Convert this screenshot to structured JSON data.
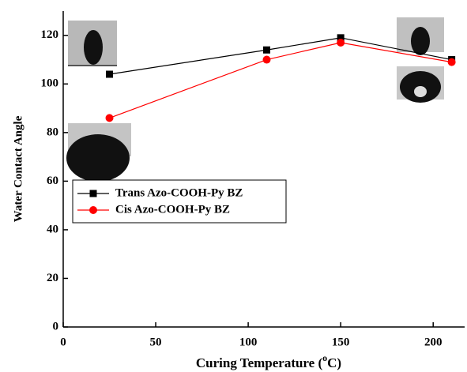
{
  "chart_data": {
    "type": "line",
    "x_label": {
      "text": "Curing Temperature (",
      "superscript": "o",
      "suffix": "C)"
    },
    "y_label": "Water Contact Angle",
    "xlim": [
      0,
      217
    ],
    "xticks": [
      0,
      50,
      100,
      150,
      200
    ],
    "ylim": [
      0,
      130
    ],
    "yticks": [
      0,
      20,
      40,
      60,
      80,
      100,
      120
    ],
    "legend": "middle left",
    "series": [
      {
        "name": "Trans Azo-COOH-Py BZ",
        "color": "#000000",
        "marker": "square",
        "x": [
          25,
          110,
          150,
          210
        ],
        "values": [
          104,
          114,
          119,
          110
        ]
      },
      {
        "name": "Cis Azo-COOH-Py BZ",
        "color": "#ff0000",
        "marker": "circle",
        "x": [
          25,
          110,
          150,
          210
        ],
        "values": [
          86,
          110,
          117,
          109
        ]
      }
    ]
  }
}
